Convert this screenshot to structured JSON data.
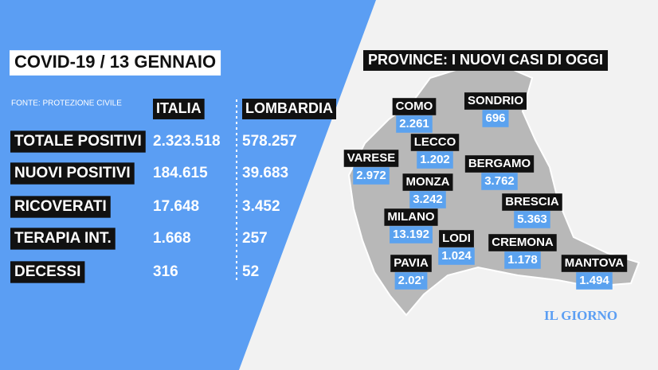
{
  "title": "COVID-19 / 13 GENNAIO",
  "source": "FONTE: PROTEZIONE CIVILE",
  "table": {
    "columns": [
      "ITALIA",
      "LOMBARDIA"
    ],
    "rows": [
      [
        "TOTALE POSITIVI",
        "2.323.518",
        "578.257"
      ],
      [
        "NUOVI POSITIVI",
        "184.615",
        "39.683"
      ],
      [
        "RICOVERATI",
        "17.648",
        "3.452"
      ],
      [
        "TERAPIA INT.",
        "1.668",
        "257"
      ],
      [
        "DECESSI",
        "316",
        "52"
      ]
    ]
  },
  "map": {
    "title": "PROVINCE: I NUOVI CASI DI OGGI",
    "provinces": [
      {
        "name": "COMO",
        "value": "2.261"
      },
      {
        "name": "SONDRIO",
        "value": "696"
      },
      {
        "name": "LECCO",
        "value": "1.202"
      },
      {
        "name": "VARESE",
        "value": "2.972"
      },
      {
        "name": "BERGAMO",
        "value": "3.762"
      },
      {
        "name": "MONZA",
        "value": "3.242"
      },
      {
        "name": "BRESCIA",
        "value": "5.363"
      },
      {
        "name": "MILANO",
        "value": "13.192"
      },
      {
        "name": "LODI",
        "value": "1.024"
      },
      {
        "name": "CREMONA",
        "value": "1.178"
      },
      {
        "name": "PAVIA",
        "value": "2.02'"
      },
      {
        "name": "MANTOVA",
        "value": "1.494"
      }
    ]
  },
  "logo": "IL GIORNO"
}
